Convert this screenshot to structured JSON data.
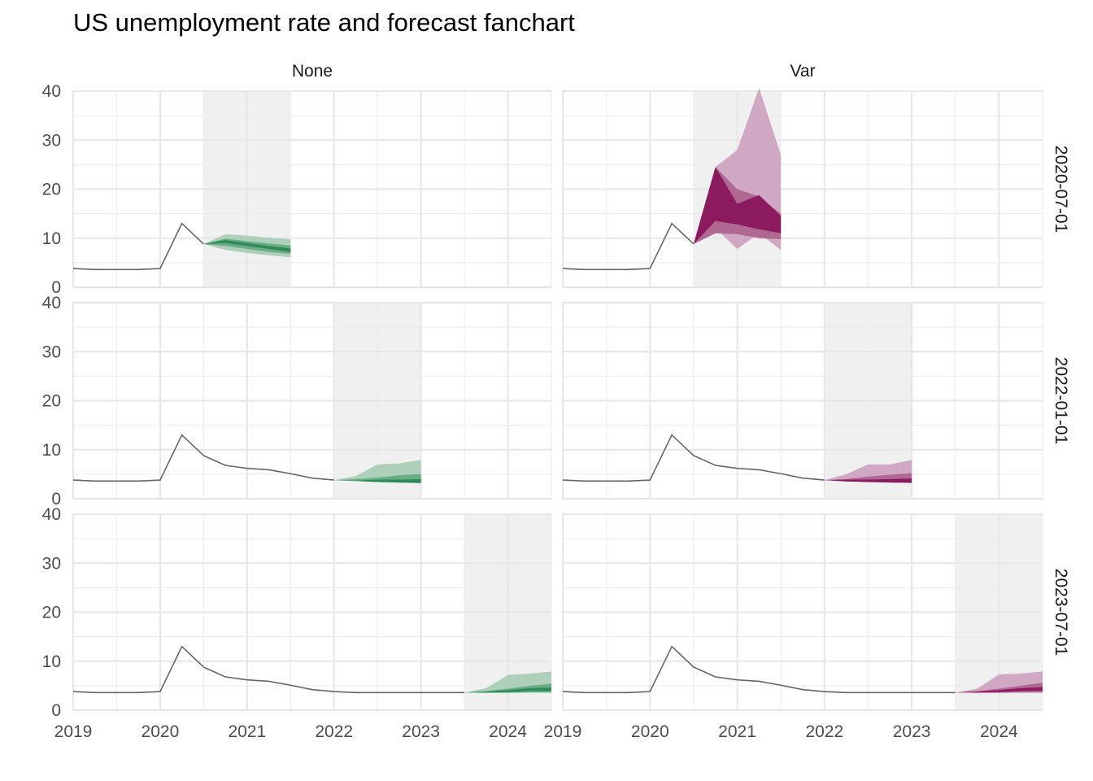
{
  "chart_data": {
    "type": "area",
    "title": "US unemployment rate and forecast fanchart",
    "xlabel": "",
    "ylabel": "",
    "ylim": [
      0,
      40
    ],
    "xlim": [
      2019,
      2024.5
    ],
    "y_ticks": [
      "0",
      "10",
      "20",
      "30",
      "40"
    ],
    "x_ticks": [
      "2019",
      "2020",
      "2021",
      "2022",
      "2023",
      "2024"
    ],
    "grid": true,
    "legend": "none",
    "facet_columns": [
      "None",
      "Var"
    ],
    "facet_rows": [
      "2020-07-01",
      "2022-01-01",
      "2023-07-01"
    ],
    "colors": {
      "history_line": "#666666",
      "forecast_window": "#f0f0f0",
      "None": [
        "#aed0bb",
        "#6aac84",
        "#2e8b57"
      ],
      "Var": [
        "#d0a8c4",
        "#b06892",
        "#8b1a5f"
      ]
    },
    "history": {
      "x": [
        2019.0,
        2019.25,
        2019.5,
        2019.75,
        2020.0,
        2020.25,
        2020.5,
        2020.75,
        2021.0,
        2021.25,
        2021.5,
        2021.75,
        2022.0,
        2022.25,
        2022.5,
        2022.75,
        2023.0,
        2023.25,
        2023.5
      ],
      "y": [
        3.8,
        3.6,
        3.6,
        3.6,
        3.8,
        13.0,
        8.8,
        6.8,
        6.2,
        5.9,
        5.1,
        4.2,
        3.8,
        3.6,
        3.6,
        3.6,
        3.6,
        3.6,
        3.6
      ]
    },
    "panels": [
      {
        "method": "None",
        "origin": "2020-07-01",
        "window": [
          2020.5,
          2021.5
        ],
        "x": [
          2020.5,
          2020.75,
          2021.0,
          2021.25,
          2021.5
        ],
        "bands": [
          {
            "level": "outer",
            "lo": [
              8.8,
              7.6,
              7.0,
              6.5,
              6.1
            ],
            "hi": [
              8.8,
              10.8,
              10.5,
              10.1,
              9.8
            ]
          },
          {
            "level": "mid",
            "lo": [
              8.8,
              8.4,
              7.8,
              7.2,
              6.8
            ],
            "hi": [
              8.8,
              9.9,
              9.4,
              8.9,
              8.5
            ]
          },
          {
            "level": "inner",
            "lo": [
              8.8,
              9.0,
              8.4,
              7.8,
              7.2
            ],
            "hi": [
              8.8,
              9.6,
              9.0,
              8.4,
              7.9
            ]
          }
        ]
      },
      {
        "method": "Var",
        "origin": "2020-07-01",
        "window": [
          2020.5,
          2021.5
        ],
        "x": [
          2020.5,
          2020.75,
          2021.0,
          2021.25,
          2021.5
        ],
        "bands": [
          {
            "level": "outer",
            "lo": [
              8.8,
              12.0,
              7.8,
              11.0,
              7.6
            ],
            "hi": [
              8.8,
              24.5,
              28.0,
              40.6,
              27.0
            ]
          },
          {
            "level": "mid",
            "lo": [
              8.8,
              11.0,
              10.8,
              10.0,
              9.8
            ],
            "hi": [
              8.8,
              24.5,
              20.0,
              18.5,
              15.0
            ]
          },
          {
            "level": "inner",
            "lo": [
              8.8,
              13.5,
              12.8,
              11.8,
              11.0
            ],
            "hi": [
              8.8,
              24.5,
              17.0,
              18.8,
              14.5
            ]
          }
        ]
      },
      {
        "method": "None",
        "origin": "2022-01-01",
        "window": [
          2022.0,
          2023.0
        ],
        "x": [
          2022.0,
          2022.25,
          2022.5,
          2022.75,
          2023.0
        ],
        "bands": [
          {
            "level": "outer",
            "lo": [
              3.8,
              3.6,
              3.4,
              3.3,
              3.2
            ],
            "hi": [
              3.8,
              4.6,
              7.0,
              7.2,
              7.9
            ]
          },
          {
            "level": "mid",
            "lo": [
              3.8,
              3.6,
              3.4,
              3.3,
              3.2
            ],
            "hi": [
              3.8,
              4.0,
              4.3,
              4.8,
              5.0
            ]
          },
          {
            "level": "inner",
            "lo": [
              3.8,
              3.6,
              3.4,
              3.3,
              3.2
            ],
            "hi": [
              3.8,
              3.7,
              3.9,
              3.9,
              4.0
            ]
          }
        ]
      },
      {
        "method": "Var",
        "origin": "2022-01-01",
        "window": [
          2022.0,
          2023.0
        ],
        "x": [
          2022.0,
          2022.25,
          2022.5,
          2022.75,
          2023.0
        ],
        "bands": [
          {
            "level": "outer",
            "lo": [
              3.8,
              3.6,
              3.4,
              3.3,
              3.2
            ],
            "hi": [
              3.8,
              5.0,
              7.0,
              7.0,
              7.9
            ]
          },
          {
            "level": "mid",
            "lo": [
              3.8,
              3.6,
              3.4,
              3.3,
              3.2
            ],
            "hi": [
              3.8,
              4.0,
              4.5,
              4.9,
              5.2
            ]
          },
          {
            "level": "inner",
            "lo": [
              3.8,
              3.5,
              3.4,
              3.3,
              3.3
            ],
            "hi": [
              3.8,
              3.9,
              3.9,
              4.0,
              4.1
            ]
          }
        ]
      },
      {
        "method": "None",
        "origin": "2023-07-01",
        "window": [
          2023.5,
          2024.5
        ],
        "x": [
          2023.5,
          2023.75,
          2024.0,
          2024.25,
          2024.5
        ],
        "bands": [
          {
            "level": "outer",
            "lo": [
              3.6,
              3.5,
              3.5,
              3.5,
              3.5
            ],
            "hi": [
              3.6,
              4.5,
              7.2,
              7.5,
              7.9
            ]
          },
          {
            "level": "mid",
            "lo": [
              3.6,
              3.6,
              3.6,
              3.7,
              3.7
            ],
            "hi": [
              3.6,
              3.9,
              4.4,
              5.0,
              5.4
            ]
          },
          {
            "level": "inner",
            "lo": [
              3.6,
              3.6,
              3.7,
              3.9,
              3.9
            ],
            "hi": [
              3.6,
              3.8,
              4.1,
              4.5,
              4.6
            ]
          }
        ]
      },
      {
        "method": "Var",
        "origin": "2023-07-01",
        "window": [
          2023.5,
          2024.5
        ],
        "x": [
          2023.5,
          2023.75,
          2024.0,
          2024.25,
          2024.5
        ],
        "bands": [
          {
            "level": "outer",
            "lo": [
              3.6,
              3.5,
              3.5,
              3.5,
              3.5
            ],
            "hi": [
              3.6,
              4.4,
              7.3,
              7.5,
              7.9
            ]
          },
          {
            "level": "mid",
            "lo": [
              3.6,
              3.6,
              3.6,
              3.7,
              3.7
            ],
            "hi": [
              3.6,
              3.9,
              4.4,
              5.0,
              5.6
            ]
          },
          {
            "level": "inner",
            "lo": [
              3.6,
              3.6,
              3.7,
              3.9,
              4.0
            ],
            "hi": [
              3.6,
              3.8,
              4.1,
              4.5,
              4.7
            ]
          }
        ]
      }
    ]
  }
}
